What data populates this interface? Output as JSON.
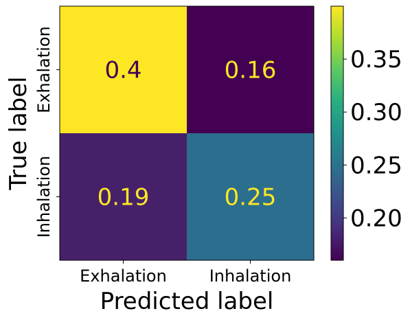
{
  "chart_data": {
    "type": "heatmap",
    "x_categories": [
      "Exhalation",
      "Inhalation"
    ],
    "y_categories": [
      "Exhalation",
      "Inhalation"
    ],
    "values": [
      [
        0.4,
        0.16
      ],
      [
        0.19,
        0.25
      ]
    ],
    "cell_labels": [
      [
        "0.4",
        "0.16"
      ],
      [
        "0.19",
        "0.25"
      ]
    ],
    "xlabel": "Predicted label",
    "ylabel": "True label",
    "colorbar": {
      "min": 0.16,
      "max": 0.4,
      "ticks": [
        0.2,
        0.25,
        0.3,
        0.35
      ],
      "tick_labels": [
        "0.20",
        "0.25",
        "0.30",
        "0.35"
      ]
    },
    "colormap": "viridis",
    "colors": {
      "cell_0_0": "#fde725",
      "cell_0_1": "#440154",
      "cell_1_0": "#46216a",
      "cell_1_1": "#2c6e8d",
      "text_dark": "#440154",
      "text_light": "#fde725"
    }
  }
}
